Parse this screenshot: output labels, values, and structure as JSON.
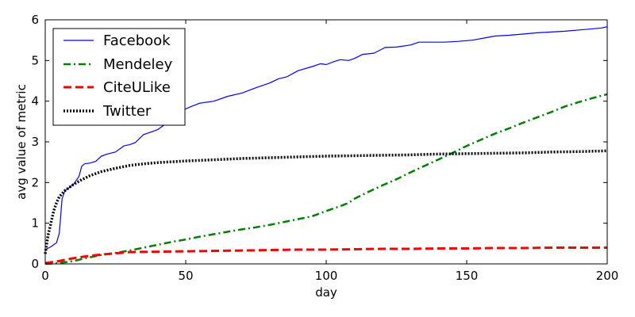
{
  "chart_data": {
    "type": "line",
    "title": "",
    "xlabel": "day",
    "ylabel": "avg value of metric",
    "xlim": [
      0,
      200
    ],
    "ylim": [
      0,
      6
    ],
    "xticks": [
      0,
      50,
      100,
      150,
      200
    ],
    "yticks": [
      0,
      1,
      2,
      3,
      4,
      5,
      6
    ],
    "grid": false,
    "legend_position": "top-left",
    "series": [
      {
        "name": "Facebook",
        "color": "#0000ff",
        "style": "solid",
        "points": [
          [
            0,
            0.35
          ],
          [
            2,
            0.42
          ],
          [
            4,
            0.52
          ],
          [
            5,
            0.75
          ],
          [
            6,
            1.6
          ],
          [
            7,
            1.8
          ],
          [
            8,
            1.85
          ],
          [
            10,
            1.95
          ],
          [
            11,
            2.05
          ],
          [
            12,
            2.15
          ],
          [
            13,
            2.4
          ],
          [
            14,
            2.46
          ],
          [
            16,
            2.48
          ],
          [
            18,
            2.52
          ],
          [
            20,
            2.65
          ],
          [
            22,
            2.7
          ],
          [
            25,
            2.75
          ],
          [
            28,
            2.9
          ],
          [
            30,
            2.93
          ],
          [
            32,
            2.98
          ],
          [
            35,
            3.18
          ],
          [
            38,
            3.25
          ],
          [
            40,
            3.3
          ],
          [
            42,
            3.4
          ],
          [
            45,
            3.55
          ],
          [
            48,
            3.75
          ],
          [
            52,
            3.87
          ],
          [
            55,
            3.95
          ],
          [
            60,
            4.0
          ],
          [
            65,
            4.12
          ],
          [
            70,
            4.2
          ],
          [
            75,
            4.33
          ],
          [
            80,
            4.45
          ],
          [
            83,
            4.55
          ],
          [
            86,
            4.6
          ],
          [
            90,
            4.75
          ],
          [
            95,
            4.85
          ],
          [
            98,
            4.92
          ],
          [
            100,
            4.9
          ],
          [
            103,
            4.98
          ],
          [
            105,
            5.02
          ],
          [
            108,
            5.0
          ],
          [
            110,
            5.05
          ],
          [
            113,
            5.15
          ],
          [
            117,
            5.18
          ],
          [
            121,
            5.32
          ],
          [
            125,
            5.33
          ],
          [
            130,
            5.38
          ],
          [
            133,
            5.45
          ],
          [
            137,
            5.45
          ],
          [
            142,
            5.45
          ],
          [
            147,
            5.47
          ],
          [
            152,
            5.5
          ],
          [
            156,
            5.55
          ],
          [
            160,
            5.6
          ],
          [
            165,
            5.62
          ],
          [
            170,
            5.65
          ],
          [
            175,
            5.68
          ],
          [
            180,
            5.7
          ],
          [
            185,
            5.72
          ],
          [
            190,
            5.75
          ],
          [
            195,
            5.78
          ],
          [
            198,
            5.8
          ],
          [
            200,
            5.83
          ]
        ]
      },
      {
        "name": "Mendeley",
        "color": "#008000",
        "style": "dashdot",
        "points": [
          [
            0,
            0.0
          ],
          [
            5,
            0.02
          ],
          [
            10,
            0.07
          ],
          [
            15,
            0.15
          ],
          [
            20,
            0.22
          ],
          [
            25,
            0.27
          ],
          [
            30,
            0.33
          ],
          [
            35,
            0.4
          ],
          [
            40,
            0.47
          ],
          [
            45,
            0.54
          ],
          [
            50,
            0.6
          ],
          [
            55,
            0.67
          ],
          [
            60,
            0.73
          ],
          [
            65,
            0.79
          ],
          [
            70,
            0.85
          ],
          [
            75,
            0.9
          ],
          [
            80,
            0.96
          ],
          [
            85,
            1.03
          ],
          [
            90,
            1.1
          ],
          [
            95,
            1.17
          ],
          [
            100,
            1.3
          ],
          [
            105,
            1.42
          ],
          [
            108,
            1.5
          ],
          [
            110,
            1.6
          ],
          [
            115,
            1.77
          ],
          [
            120,
            1.93
          ],
          [
            125,
            2.08
          ],
          [
            130,
            2.25
          ],
          [
            135,
            2.41
          ],
          [
            140,
            2.57
          ],
          [
            145,
            2.73
          ],
          [
            150,
            2.9
          ],
          [
            155,
            3.05
          ],
          [
            160,
            3.2
          ],
          [
            165,
            3.33
          ],
          [
            170,
            3.47
          ],
          [
            175,
            3.6
          ],
          [
            180,
            3.73
          ],
          [
            185,
            3.87
          ],
          [
            190,
            3.98
          ],
          [
            195,
            4.08
          ],
          [
            200,
            4.17
          ]
        ]
      },
      {
        "name": "CiteULike",
        "color": "#ff0000",
        "style": "dashed",
        "points": [
          [
            0,
            0.02
          ],
          [
            5,
            0.07
          ],
          [
            10,
            0.14
          ],
          [
            15,
            0.19
          ],
          [
            20,
            0.23
          ],
          [
            25,
            0.26
          ],
          [
            30,
            0.29
          ],
          [
            40,
            0.3
          ],
          [
            50,
            0.31
          ],
          [
            60,
            0.32
          ],
          [
            70,
            0.33
          ],
          [
            80,
            0.34
          ],
          [
            90,
            0.35
          ],
          [
            100,
            0.35
          ],
          [
            110,
            0.36
          ],
          [
            120,
            0.37
          ],
          [
            130,
            0.37
          ],
          [
            140,
            0.38
          ],
          [
            150,
            0.38
          ],
          [
            160,
            0.39
          ],
          [
            170,
            0.39
          ],
          [
            180,
            0.4
          ],
          [
            190,
            0.4
          ],
          [
            200,
            0.4
          ]
        ]
      },
      {
        "name": "Twitter",
        "color": "#000000",
        "style": "dotted",
        "points": [
          [
            0,
            0.25
          ],
          [
            1,
            0.7
          ],
          [
            2,
            1.0
          ],
          [
            3,
            1.3
          ],
          [
            4,
            1.5
          ],
          [
            5,
            1.65
          ],
          [
            7,
            1.8
          ],
          [
            10,
            1.95
          ],
          [
            13,
            2.07
          ],
          [
            16,
            2.17
          ],
          [
            20,
            2.27
          ],
          [
            25,
            2.35
          ],
          [
            30,
            2.42
          ],
          [
            35,
            2.46
          ],
          [
            40,
            2.49
          ],
          [
            50,
            2.53
          ],
          [
            60,
            2.56
          ],
          [
            70,
            2.59
          ],
          [
            80,
            2.61
          ],
          [
            90,
            2.63
          ],
          [
            100,
            2.65
          ],
          [
            110,
            2.66
          ],
          [
            120,
            2.67
          ],
          [
            130,
            2.68
          ],
          [
            140,
            2.7
          ],
          [
            150,
            2.71
          ],
          [
            160,
            2.72
          ],
          [
            170,
            2.73
          ],
          [
            180,
            2.75
          ],
          [
            190,
            2.76
          ],
          [
            200,
            2.78
          ]
        ]
      }
    ]
  }
}
